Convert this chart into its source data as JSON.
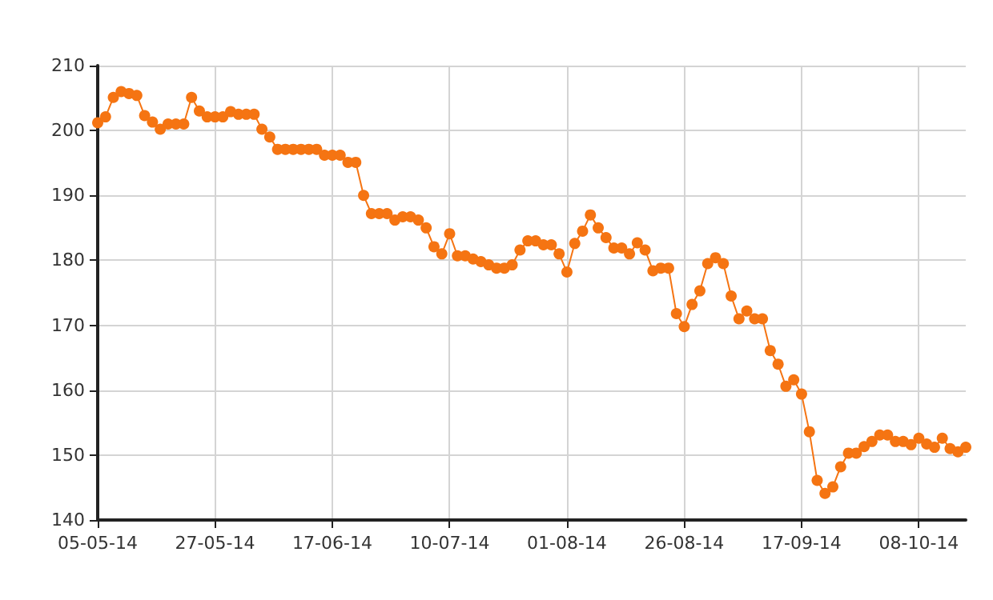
{
  "chart_data": {
    "type": "line",
    "categories": [
      "05-05-14",
      null,
      null,
      null,
      null,
      null,
      null,
      null,
      null,
      null,
      null,
      null,
      null,
      null,
      null,
      "27-05-14",
      null,
      null,
      null,
      null,
      null,
      null,
      null,
      null,
      null,
      null,
      null,
      null,
      null,
      null,
      "17-06-14",
      null,
      null,
      null,
      null,
      null,
      null,
      null,
      null,
      null,
      null,
      null,
      null,
      null,
      null,
      "10-07-14",
      null,
      null,
      null,
      null,
      null,
      null,
      null,
      null,
      null,
      null,
      null,
      null,
      null,
      null,
      "01-08-14",
      null,
      null,
      null,
      null,
      null,
      null,
      null,
      null,
      null,
      null,
      null,
      null,
      null,
      null,
      "26-08-14",
      null,
      null,
      null,
      null,
      null,
      null,
      null,
      null,
      null,
      null,
      null,
      null,
      null,
      null,
      "17-09-14",
      null,
      null,
      null,
      null,
      null,
      null,
      null,
      null,
      null,
      null,
      null,
      null,
      null,
      null,
      "08-10-14",
      null,
      null,
      null,
      null,
      null,
      null
    ],
    "series": [
      {
        "color": "#f57412",
        "values": [
          201.2,
          202.1,
          205.1,
          206,
          205.7,
          205.4,
          202.3,
          201.3,
          200.2,
          201,
          201,
          201,
          205.1,
          203,
          202.1,
          202.1,
          202.1,
          202.9,
          202.5,
          202.5,
          202.5,
          200.2,
          199,
          197.1,
          197.1,
          197.1,
          197.1,
          197.1,
          197.1,
          196.2,
          196.2,
          196.2,
          195.1,
          195.1,
          190,
          187.2,
          187.2,
          187.2,
          186.2,
          186.7,
          186.7,
          186.2,
          185,
          182.1,
          181,
          184.1,
          180.7,
          180.7,
          180.2,
          179.8,
          179.3,
          178.8,
          178.8,
          179.3,
          181.6,
          183,
          183,
          182.4,
          182.4,
          181,
          178.2,
          182.6,
          184.5,
          187,
          185,
          183.5,
          181.9,
          181.9,
          181,
          182.7,
          181.6,
          178.4,
          178.8,
          178.8,
          171.8,
          169.8,
          173.2,
          175.3,
          179.5,
          180.4,
          179.5,
          174.5,
          171,
          172.2,
          171,
          171,
          166.1,
          164,
          160.6,
          161.6,
          159.4,
          153.6,
          146.1,
          144.1,
          145.1,
          148.2,
          150.3,
          150.3,
          151.3,
          152.1,
          153.1,
          153.1,
          152.1,
          152.1,
          151.6,
          152.6,
          151.7,
          151.2,
          152.6,
          151,
          150.5,
          151.2
        ]
      }
    ],
    "ylim": [
      140,
      210
    ],
    "yticks": [
      140,
      150,
      160,
      170,
      180,
      190,
      200,
      210
    ],
    "grid": true,
    "marker": "circle",
    "line_style": "solid"
  }
}
